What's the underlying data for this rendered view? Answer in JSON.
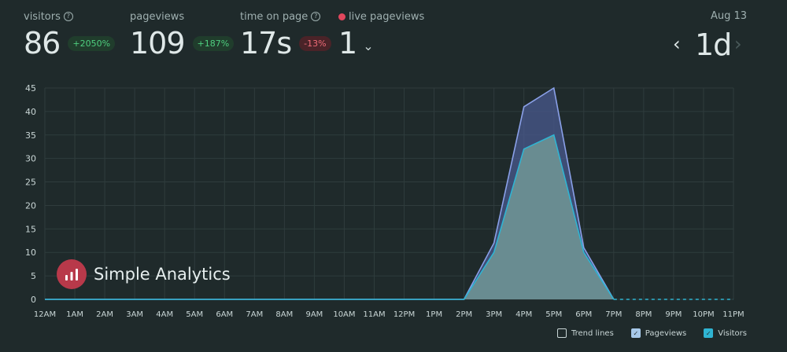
{
  "metrics": {
    "visitors": {
      "label": "visitors",
      "value": "86",
      "change": "+2050%"
    },
    "pageviews": {
      "label": "pageviews",
      "value": "109",
      "change": "+187%"
    },
    "time_on_page": {
      "label": "time on page",
      "value": "17s",
      "change": "-13%"
    },
    "live_pageviews": {
      "label": "live pageviews",
      "value": "1"
    }
  },
  "period": {
    "date": "Aug 13",
    "range": "1d"
  },
  "brand": {
    "name": "Simple Analytics"
  },
  "legend": {
    "trend_lines": "Trend lines",
    "pageviews": "Pageviews",
    "visitors": "Visitors"
  },
  "colors": {
    "background": "#1f2a2b",
    "pageviews": "#8aa0e8",
    "visitors": "#2fb4d2",
    "badge_up": "#4fcf7f",
    "badge_down": "#ef6b77",
    "live": "#e2475d"
  },
  "icons": {
    "help": "question-circle-icon",
    "live": "red-dot-icon",
    "dropdown": "chevron-down-icon",
    "prev": "chevron-left-icon",
    "next": "chevron-right-icon",
    "logo": "bar-chart-logo-icon"
  },
  "chart_data": {
    "type": "area",
    "categories": [
      "12AM",
      "1AM",
      "2AM",
      "3AM",
      "4AM",
      "5AM",
      "6AM",
      "7AM",
      "8AM",
      "9AM",
      "10AM",
      "11AM",
      "12PM",
      "1PM",
      "2PM",
      "3PM",
      "4PM",
      "5PM",
      "6PM",
      "7PM",
      "8PM",
      "9PM",
      "10PM",
      "11PM"
    ],
    "series": [
      {
        "name": "Pageviews",
        "values": [
          0,
          0,
          0,
          0,
          0,
          0,
          0,
          0,
          0,
          0,
          0,
          0,
          0,
          0,
          0,
          12,
          41,
          45,
          11,
          0,
          null,
          null,
          null,
          null
        ]
      },
      {
        "name": "Visitors",
        "values": [
          0,
          0,
          0,
          0,
          0,
          0,
          0,
          0,
          0,
          0,
          0,
          0,
          0,
          0,
          0,
          10,
          32,
          35,
          10,
          0,
          null,
          null,
          null,
          null
        ]
      }
    ],
    "projection": {
      "from": "7PM",
      "to": "11PM",
      "value": 0
    },
    "yticks": [
      0,
      5,
      10,
      15,
      20,
      25,
      30,
      35,
      40,
      45
    ],
    "ylim": [
      0,
      45
    ],
    "grid": true,
    "legend_position": "bottom-right"
  }
}
